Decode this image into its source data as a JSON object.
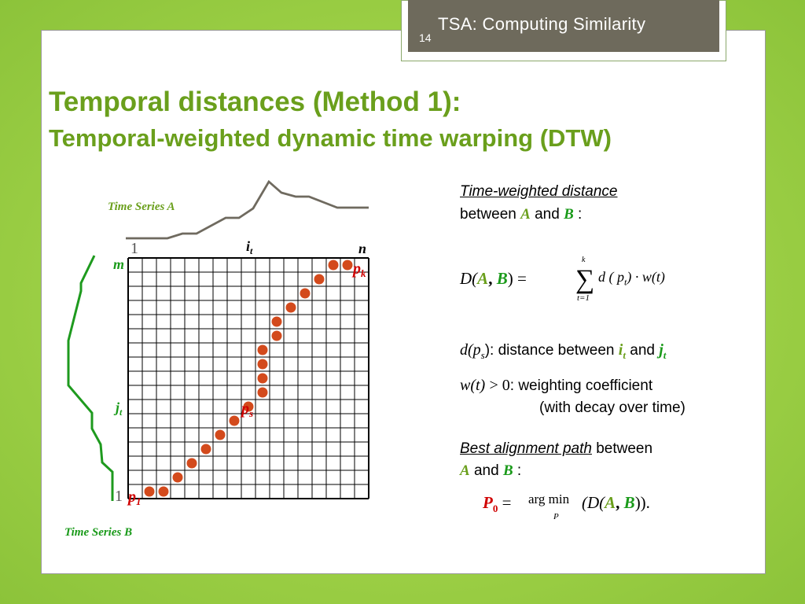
{
  "header": {
    "slide_number": "14",
    "title": "TSA: Computing Similarity"
  },
  "heading": {
    "line1": "Temporal distances (Method 1):",
    "line2": "Temporal-weighted dynamic time warping (DTW)"
  },
  "diagram": {
    "series_a_label": "Time Series A",
    "series_b_label": "Time Series B",
    "label_1_top": "1",
    "label_it": "i",
    "label_it_sub": "t",
    "label_n": "n",
    "label_m": "m",
    "label_jt": "j",
    "label_jt_sub": "t",
    "label_1_left": "1",
    "label_pk": "p",
    "label_pk_sub": "k",
    "label_ps": "p",
    "label_ps_sub": "s",
    "label_p1": "p",
    "label_p1_sub": "1",
    "colors": {
      "grid": "#000000",
      "dots": "#d34a1c",
      "series_a": "#6f6a5f",
      "series_b": "#1e9a1e",
      "labels_green": "#1a9a1a",
      "labels_red": "#d00000"
    }
  },
  "right": {
    "twd_title": "Time-weighted distance",
    "twd_between": "between",
    "A": "A",
    "and": "and",
    "B": "B",
    "colon": ":",
    "formula_lhs": "D(",
    "formula_comma": ",",
    "formula_close_eq": ") =",
    "sum_top": "k",
    "sum_bottom": "t=1",
    "sum_body": "d ( p",
    "sum_body_sub": "t",
    "sum_body_tail": ") · w(t)",
    "dps_text": "d(p",
    "dps_sub": "s",
    "dps_tail": "): distance between",
    "it": "i",
    "it_sub": "t",
    "and2": "and",
    "jt": "j",
    "jt_sub": "t",
    "wt_text": "w(t)",
    "wt_gt0": "> 0",
    "wt_desc": ": weighting coefficient",
    "wt_desc2": "(with decay over time)",
    "bap_title": "Best alignment path",
    "bap_between": "between",
    "p0_P": "P",
    "p0_sub": "0",
    "p0_eq": "=",
    "argmin": "arg min",
    "argmin_sub": "P",
    "argmin_body": "(D(",
    "argmin_comma": ",",
    "argmin_close": ")).",
    "colon2": ":"
  }
}
